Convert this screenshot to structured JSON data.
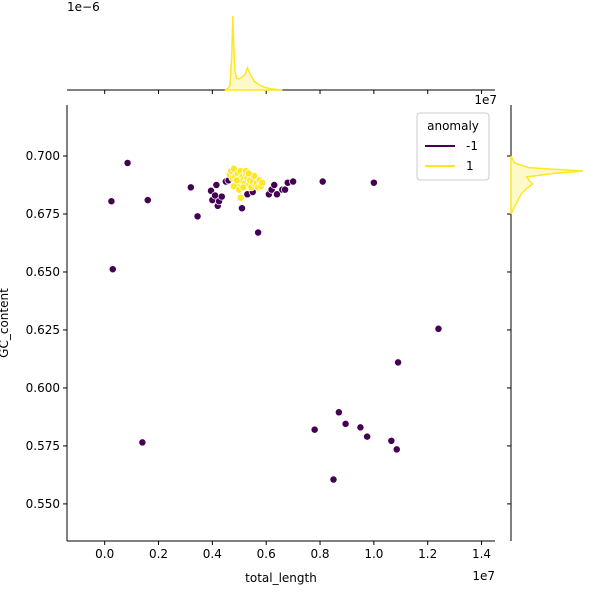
{
  "chart_data": {
    "type": "scatter",
    "title": "",
    "xlabel": "total_length",
    "ylabel": "GC_content",
    "xlim": [
      -1400000,
      14500000
    ],
    "ylim": [
      0.534,
      0.722
    ],
    "x_offset_label": "1e7",
    "y_offset_label": "",
    "marginal_x_offset_label": "1e−6",
    "marginal_y_offset_label": "1e7",
    "x_ticks": [
      0,
      2000000,
      4000000,
      6000000,
      8000000,
      10000000,
      12000000,
      14000000
    ],
    "x_tick_labels": [
      "0.0",
      "0.2",
      "0.4",
      "0.6",
      "0.8",
      "1.0",
      "1.2",
      "1.4"
    ],
    "y_ticks": [
      0.55,
      0.575,
      0.6,
      0.625,
      0.65,
      0.675,
      0.7
    ],
    "y_tick_labels": [
      "0.550",
      "0.575",
      "0.600",
      "0.625",
      "0.650",
      "0.675",
      "0.700"
    ],
    "grid": false,
    "legend": {
      "title": "anomaly",
      "placement": "top-right",
      "entries": [
        {
          "label": "-1",
          "color": "#440154"
        },
        {
          "label": "1",
          "color": "#fde725"
        }
      ]
    },
    "series": [
      {
        "name": "-1",
        "color": "#440154",
        "points": [
          [
            250000,
            0.6805
          ],
          [
            300000,
            0.6512
          ],
          [
            850000,
            0.697
          ],
          [
            1600000,
            0.681
          ],
          [
            1400000,
            0.5765
          ],
          [
            3200000,
            0.6865
          ],
          [
            3450000,
            0.674
          ],
          [
            3950000,
            0.685
          ],
          [
            4000000,
            0.681
          ],
          [
            4100000,
            0.683
          ],
          [
            4150000,
            0.6875
          ],
          [
            4200000,
            0.6785
          ],
          [
            4250000,
            0.6805
          ],
          [
            4350000,
            0.6825
          ],
          [
            4500000,
            0.689
          ],
          [
            4600000,
            0.6895
          ],
          [
            4900000,
            0.6915
          ],
          [
            5000000,
            0.686
          ],
          [
            5100000,
            0.6775
          ],
          [
            5300000,
            0.6835
          ],
          [
            5500000,
            0.6845
          ],
          [
            5700000,
            0.667
          ],
          [
            5800000,
            0.6885
          ],
          [
            6100000,
            0.6835
          ],
          [
            6200000,
            0.6855
          ],
          [
            6300000,
            0.6875
          ],
          [
            6400000,
            0.6835
          ],
          [
            6600000,
            0.6855
          ],
          [
            6700000,
            0.6855
          ],
          [
            6800000,
            0.6885
          ],
          [
            7000000,
            0.689
          ],
          [
            8100000,
            0.689
          ],
          [
            10000000,
            0.6885
          ],
          [
            7800000,
            0.582
          ],
          [
            8500000,
            0.5605
          ],
          [
            8700000,
            0.5895
          ],
          [
            8950000,
            0.5845
          ],
          [
            9500000,
            0.583
          ],
          [
            9750000,
            0.579
          ],
          [
            10650000,
            0.5772
          ],
          [
            10850000,
            0.5735
          ],
          [
            10900000,
            0.611
          ],
          [
            12400000,
            0.6255
          ]
        ]
      },
      {
        "name": "1",
        "color": "#fde725",
        "points": [
          [
            4650000,
            0.692
          ],
          [
            4700000,
            0.6935
          ],
          [
            4750000,
            0.6905
          ],
          [
            4800000,
            0.6945
          ],
          [
            4850000,
            0.691
          ],
          [
            4900000,
            0.6885
          ],
          [
            4950000,
            0.6925
          ],
          [
            5000000,
            0.69
          ],
          [
            5050000,
            0.6935
          ],
          [
            5100000,
            0.6895
          ],
          [
            5150000,
            0.6915
          ],
          [
            5200000,
            0.688
          ],
          [
            5250000,
            0.692
          ],
          [
            5300000,
            0.6905
          ],
          [
            5350000,
            0.6875
          ],
          [
            5400000,
            0.6895
          ],
          [
            5450000,
            0.6865
          ],
          [
            5500000,
            0.689
          ],
          [
            5550000,
            0.6915
          ],
          [
            5600000,
            0.6875
          ],
          [
            5650000,
            0.6885
          ],
          [
            5700000,
            0.6865
          ],
          [
            5750000,
            0.6895
          ],
          [
            5800000,
            0.687
          ],
          [
            5850000,
            0.6885
          ],
          [
            4800000,
            0.687
          ],
          [
            5000000,
            0.6855
          ],
          [
            5150000,
            0.6865
          ],
          [
            5050000,
            0.682
          ],
          [
            4900000,
            0.6895
          ],
          [
            5250000,
            0.6935
          ],
          [
            5350000,
            0.6925
          ]
        ]
      }
    ],
    "marginal_x": {
      "series": "1",
      "color": "#fde725",
      "x": [
        4500000,
        4650000,
        4720000,
        4760000,
        4800000,
        4840000,
        4900000,
        5000000,
        5100000,
        5200000,
        5300000,
        5400000,
        5550000,
        5700000,
        5900000,
        6200000,
        6600000
      ],
      "density": [
        0.0,
        0.05,
        0.45,
        1.0,
        0.55,
        0.25,
        0.16,
        0.15,
        0.18,
        0.2,
        0.3,
        0.22,
        0.12,
        0.08,
        0.04,
        0.015,
        0.0
      ]
    },
    "marginal_y": {
      "series": "1",
      "color": "#fde725",
      "y": [
        0.675,
        0.68,
        0.684,
        0.686,
        0.688,
        0.6895,
        0.691,
        0.6925,
        0.6935,
        0.695,
        0.697,
        0.7
      ],
      "density": [
        0.0,
        0.08,
        0.15,
        0.22,
        0.3,
        0.25,
        0.22,
        0.6,
        1.0,
        0.25,
        0.05,
        0.0
      ]
    }
  }
}
